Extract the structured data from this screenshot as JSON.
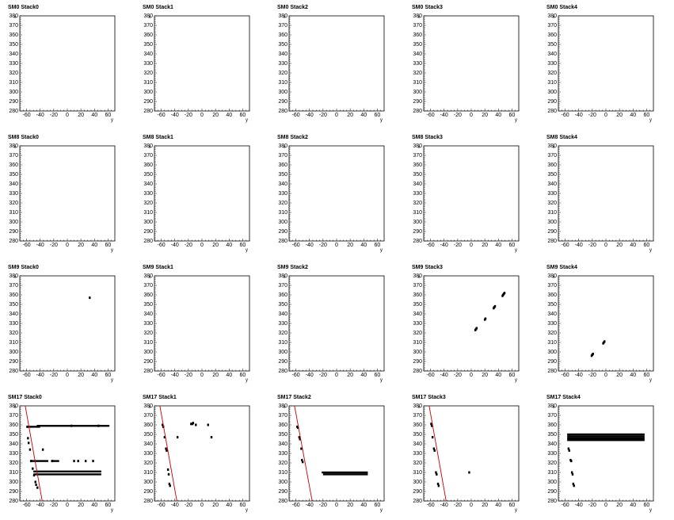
{
  "axis": {
    "xlabel": "y",
    "ylabel": "x",
    "xlim": [
      -70,
      70
    ],
    "ylim": [
      280,
      380
    ],
    "xticks": [
      -60,
      -40,
      -20,
      0,
      20,
      40,
      60
    ],
    "yticks": [
      280,
      290,
      300,
      310,
      320,
      330,
      340,
      350,
      360,
      370,
      380
    ]
  },
  "colors": {
    "track": "#cc0000",
    "hits": "#000000",
    "frame": "#000000"
  },
  "chart_data": [
    {
      "type": "scatter",
      "title": "SM0 Stack0",
      "points": [],
      "segments": [],
      "track": null
    },
    {
      "type": "scatter",
      "title": "SM0 Stack1",
      "points": [],
      "segments": [],
      "track": null
    },
    {
      "type": "scatter",
      "title": "SM0 Stack2",
      "points": [],
      "segments": [],
      "track": null
    },
    {
      "type": "scatter",
      "title": "SM0 Stack3",
      "points": [],
      "segments": [],
      "track": null
    },
    {
      "type": "scatter",
      "title": "SM0 Stack4",
      "points": [],
      "segments": [],
      "track": null
    },
    {
      "type": "scatter",
      "title": "SM8 Stack0",
      "points": [],
      "segments": [],
      "track": null
    },
    {
      "type": "scatter",
      "title": "SM8 Stack1",
      "points": [],
      "segments": [],
      "track": null
    },
    {
      "type": "scatter",
      "title": "SM8 Stack2",
      "points": [],
      "segments": [],
      "track": null
    },
    {
      "type": "scatter",
      "title": "SM8 Stack3",
      "points": [],
      "segments": [],
      "track": null
    },
    {
      "type": "scatter",
      "title": "SM8 Stack4",
      "points": [],
      "segments": [],
      "track": null
    },
    {
      "type": "scatter",
      "title": "SM9 Stack0",
      "points": [
        [
          33,
          357
        ]
      ],
      "segments": [],
      "track": null
    },
    {
      "type": "scatter",
      "title": "SM9 Stack1",
      "points": [],
      "segments": [],
      "track": null
    },
    {
      "type": "scatter",
      "title": "SM9 Stack2",
      "points": [],
      "segments": [],
      "track": null
    },
    {
      "type": "scatter",
      "title": "SM9 Stack3",
      "points": [
        [
          6,
          323
        ],
        [
          7,
          324
        ],
        [
          8,
          325
        ],
        [
          20,
          334
        ],
        [
          21,
          335
        ],
        [
          33,
          346
        ],
        [
          34,
          347
        ],
        [
          35,
          348
        ],
        [
          46,
          359
        ],
        [
          47,
          360
        ],
        [
          48,
          361
        ],
        [
          49,
          362
        ]
      ],
      "segments": [],
      "track": null
    },
    {
      "type": "scatter",
      "title": "SM9 Stack4",
      "points": [
        [
          -21,
          296
        ],
        [
          -20,
          297
        ],
        [
          -19,
          298
        ],
        [
          -4,
          309
        ],
        [
          -3,
          310
        ],
        [
          -2,
          311
        ]
      ],
      "segments": [],
      "track": null
    },
    {
      "type": "scatter",
      "title": "SM17 Stack0",
      "points": [
        [
          -59,
          358
        ],
        [
          -58,
          346
        ],
        [
          -57,
          341
        ],
        [
          -55,
          334
        ],
        [
          -53,
          322
        ],
        [
          -51,
          314
        ],
        [
          -49,
          307
        ],
        [
          -47,
          300
        ],
        [
          -46,
          297
        ],
        [
          -44,
          294
        ],
        [
          -36,
          334
        ],
        [
          -22,
          322
        ],
        [
          6,
          359
        ],
        [
          10,
          322
        ],
        [
          16,
          322
        ],
        [
          27,
          322
        ],
        [
          38,
          322
        ],
        [
          46,
          359
        ]
      ],
      "segments": [
        [
          -60,
          -40,
          358
        ],
        [
          -45,
          62,
          359
        ],
        [
          -55,
          -28,
          322
        ],
        [
          -24,
          -12,
          322
        ],
        [
          -50,
          50,
          308
        ],
        [
          -50,
          50,
          311
        ]
      ],
      "track": [
        [
          -62,
          380
        ],
        [
          -37,
          280
        ]
      ]
    },
    {
      "type": "scatter",
      "title": "SM17 Stack1",
      "points": [
        [
          -58,
          360
        ],
        [
          -57,
          358
        ],
        [
          -55,
          347
        ],
        [
          -53,
          335
        ],
        [
          -52,
          333
        ],
        [
          -50,
          313
        ],
        [
          -49,
          308
        ],
        [
          -48,
          298
        ],
        [
          -47,
          296
        ],
        [
          -36,
          347
        ],
        [
          -16,
          361
        ],
        [
          -14,
          361
        ],
        [
          -13,
          362
        ],
        [
          -9,
          360
        ],
        [
          9,
          360
        ],
        [
          14,
          347
        ]
      ],
      "segments": [],
      "track": [
        [
          -62,
          380
        ],
        [
          -37,
          280
        ]
      ]
    },
    {
      "type": "scatter",
      "title": "SM17 Stack2",
      "points": [
        [
          -58,
          358
        ],
        [
          -57,
          357
        ],
        [
          -55,
          347
        ],
        [
          -54,
          345
        ],
        [
          -52,
          335
        ],
        [
          -51,
          323
        ],
        [
          -50,
          321
        ]
      ],
      "segments": [
        [
          -22,
          46,
          310
        ],
        [
          -20,
          46,
          308
        ]
      ],
      "track": [
        [
          -62,
          380
        ],
        [
          -36,
          280
        ]
      ]
    },
    {
      "type": "scatter",
      "title": "SM17 Stack3",
      "points": [
        [
          -59,
          361
        ],
        [
          -58,
          359
        ],
        [
          -57,
          347
        ],
        [
          -55,
          335
        ],
        [
          -54,
          333
        ],
        [
          -52,
          310
        ],
        [
          -51,
          308
        ],
        [
          -49,
          298
        ],
        [
          -48,
          296
        ],
        [
          -3,
          310
        ]
      ],
      "segments": [],
      "track": [
        [
          -62,
          380
        ],
        [
          -37,
          280
        ]
      ]
    },
    {
      "type": "scatter",
      "title": "SM17 Stack4",
      "points": [
        [
          -55,
          335
        ],
        [
          -54,
          333
        ],
        [
          -52,
          323
        ],
        [
          -51,
          322
        ],
        [
          -50,
          310
        ],
        [
          -49,
          308
        ],
        [
          -48,
          298
        ],
        [
          -47,
          296
        ]
      ],
      "segments": [
        [
          -57,
          57,
          350
        ],
        [
          -57,
          57,
          348
        ],
        [
          -57,
          57,
          346
        ],
        [
          -57,
          57,
          344
        ]
      ],
      "track": null
    }
  ]
}
